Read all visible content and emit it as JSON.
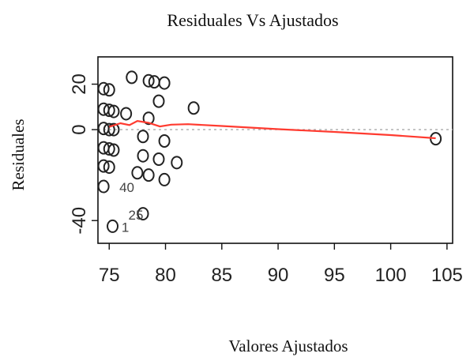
{
  "chart_data": {
    "type": "scatter",
    "title": "Residuales Vs Ajustados",
    "xlabel": "Valores  Ajustados",
    "ylabel": "Residuales",
    "xlim": [
      74,
      105.5
    ],
    "ylim": [
      -50,
      32
    ],
    "x_ticks": [
      75,
      80,
      85,
      90,
      95,
      100,
      105
    ],
    "x_tick_labels": [
      "75",
      "80",
      "85",
      "90",
      "95",
      "100",
      "105"
    ],
    "y_ticks": [
      -40,
      0,
      20
    ],
    "y_tick_labels": [
      "-40",
      "0",
      "20"
    ],
    "grid": false,
    "reference_line_y": 0,
    "points": [
      {
        "x": 74.5,
        "y": 18
      },
      {
        "x": 75.0,
        "y": 17.5
      },
      {
        "x": 74.5,
        "y": 9
      },
      {
        "x": 75.0,
        "y": 8.5
      },
      {
        "x": 75.4,
        "y": 8
      },
      {
        "x": 74.5,
        "y": 0.5
      },
      {
        "x": 75.0,
        "y": 0
      },
      {
        "x": 75.4,
        "y": 0
      },
      {
        "x": 74.5,
        "y": -8
      },
      {
        "x": 75.0,
        "y": -8.5
      },
      {
        "x": 75.4,
        "y": -9
      },
      {
        "x": 74.5,
        "y": -16
      },
      {
        "x": 75.0,
        "y": -16.5
      },
      {
        "x": 74.5,
        "y": -25
      },
      {
        "x": 75.3,
        "y": -42.5
      },
      {
        "x": 76.5,
        "y": 7
      },
      {
        "x": 77.0,
        "y": 23
      },
      {
        "x": 77.5,
        "y": -19
      },
      {
        "x": 78.0,
        "y": -3
      },
      {
        "x": 78.0,
        "y": -11.5
      },
      {
        "x": 78.0,
        "y": -37
      },
      {
        "x": 78.5,
        "y": 21.5
      },
      {
        "x": 78.5,
        "y": 5
      },
      {
        "x": 78.5,
        "y": -20
      },
      {
        "x": 79.0,
        "y": 21
      },
      {
        "x": 79.4,
        "y": 12.5
      },
      {
        "x": 79.4,
        "y": -13
      },
      {
        "x": 79.9,
        "y": 20.5
      },
      {
        "x": 79.9,
        "y": -5
      },
      {
        "x": 79.9,
        "y": -22
      },
      {
        "x": 81.0,
        "y": -14.5
      },
      {
        "x": 82.5,
        "y": 9.5
      },
      {
        "x": 104.0,
        "y": -4
      }
    ],
    "smooth_line": {
      "color": "#ff3b30",
      "x": [
        75.0,
        76.0,
        76.8,
        77.5,
        78.5,
        79.5,
        80.5,
        82.0,
        85.0,
        90.0,
        95.0,
        100.0,
        104.0
      ],
      "y": [
        1.2,
        2.8,
        2.0,
        3.8,
        3.0,
        1.4,
        2.2,
        2.4,
        1.6,
        0.2,
        -1.0,
        -2.4,
        -3.8
      ]
    },
    "annotations": [
      {
        "text": "40",
        "x": 75.9,
        "y": -27.5
      },
      {
        "text": "25",
        "x": 76.7,
        "y": -39.5
      },
      {
        "text": "1",
        "x": 76.1,
        "y": -45
      }
    ]
  }
}
